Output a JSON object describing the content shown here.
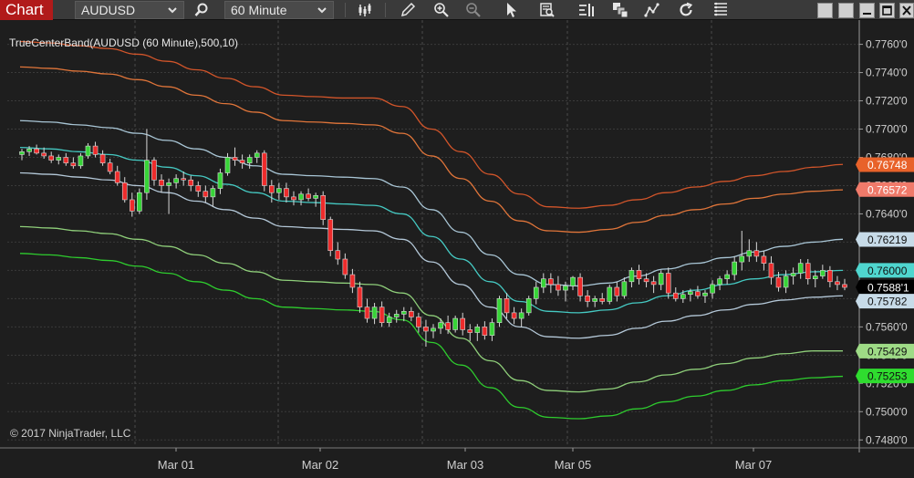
{
  "toolbar": {
    "chart_tab": "Chart",
    "instrument": "AUDUSD",
    "timeframe": "60 Minute"
  },
  "chart": {
    "indicator_label": "TrueCenterBand(AUDUSD (60 Minute),500,10)",
    "copyright": "© 2017 NinjaTrader, LLC"
  },
  "chart_data": {
    "type": "candlestick",
    "symbol": "AUDUSD",
    "interval": "60 Minute",
    "y_axis": {
      "ylim": [
        0.7475,
        0.7772
      ],
      "ticks": [
        "0.7760'0",
        "0.7740'0",
        "0.7720'0",
        "0.7700'0",
        "0.7680'0",
        "0.7660'0",
        "0.7640'0",
        "0.7620'0",
        "0.7600'0",
        "0.7580'0",
        "0.7560'0",
        "0.7540'0",
        "0.7520'0",
        "0.7500'0",
        "0.7480'0"
      ]
    },
    "x_axis": {
      "labels": [
        "Mar 01",
        "Mar 02",
        "Mar 03",
        "Mar 05",
        "Mar 07"
      ]
    },
    "grid": true,
    "band_series": [
      {
        "color": "#d2552a",
        "values": [
          0.7762,
          0.7761,
          0.7759,
          0.7757,
          0.7753,
          0.7748,
          0.7742,
          0.7736,
          0.773,
          0.7724,
          0.7723,
          0.7722,
          0.7722,
          0.7716,
          0.77,
          0.7684,
          0.7668,
          0.7654,
          0.7645,
          0.7644,
          0.7646,
          0.765,
          0.7655,
          0.7659,
          0.7663,
          0.7667,
          0.767,
          0.7673,
          0.7675
        ]
      },
      {
        "color": "#e0753a",
        "values": [
          0.7744,
          0.7743,
          0.7741,
          0.7739,
          0.7735,
          0.773,
          0.7724,
          0.7718,
          0.7712,
          0.7706,
          0.7705,
          0.7704,
          0.7703,
          0.7697,
          0.7681,
          0.7665,
          0.7649,
          0.7635,
          0.7628,
          0.7627,
          0.7629,
          0.7634,
          0.7639,
          0.7643,
          0.7647,
          0.7651,
          0.7654,
          0.7656,
          0.7657
        ]
      },
      {
        "color": "#a9c6d6",
        "values": [
          0.7706,
          0.7705,
          0.7703,
          0.7701,
          0.7697,
          0.7692,
          0.7686,
          0.768,
          0.7674,
          0.7668,
          0.7667,
          0.7666,
          0.7665,
          0.7659,
          0.7643,
          0.7627,
          0.7611,
          0.7597,
          0.759,
          0.7589,
          0.7591,
          0.7596,
          0.7601,
          0.7605,
          0.7609,
          0.7613,
          0.7617,
          0.762,
          0.7622
        ]
      },
      {
        "color": "#45c9c2",
        "values": [
          0.7687,
          0.7686,
          0.7684,
          0.7682,
          0.7678,
          0.7673,
          0.7667,
          0.7661,
          0.7655,
          0.7649,
          0.7648,
          0.7647,
          0.7646,
          0.764,
          0.7624,
          0.7608,
          0.7592,
          0.7578,
          0.7571,
          0.757,
          0.7572,
          0.7577,
          0.7582,
          0.7586,
          0.759,
          0.7594,
          0.7597,
          0.7599,
          0.76
        ]
      },
      {
        "color": "#b4c8d8",
        "values": [
          0.7669,
          0.7668,
          0.7666,
          0.7664,
          0.766,
          0.7655,
          0.7649,
          0.7643,
          0.7637,
          0.7631,
          0.763,
          0.7629,
          0.7628,
          0.7622,
          0.7606,
          0.759,
          0.7574,
          0.756,
          0.7553,
          0.7552,
          0.7554,
          0.7559,
          0.7564,
          0.7568,
          0.7572,
          0.7576,
          0.7579,
          0.7581,
          0.7582
        ]
      },
      {
        "color": "#8fcf7a",
        "values": [
          0.7631,
          0.763,
          0.7628,
          0.7626,
          0.7622,
          0.7617,
          0.7611,
          0.7605,
          0.7599,
          0.7593,
          0.7592,
          0.7591,
          0.759,
          0.7584,
          0.7568,
          0.7552,
          0.7536,
          0.7522,
          0.7515,
          0.7514,
          0.7516,
          0.7521,
          0.7526,
          0.753,
          0.7534,
          0.7538,
          0.7541,
          0.7543,
          0.7543
        ]
      },
      {
        "color": "#2ecc2e",
        "values": [
          0.7612,
          0.7611,
          0.7609,
          0.7607,
          0.7603,
          0.7598,
          0.7592,
          0.7586,
          0.758,
          0.7574,
          0.7573,
          0.7572,
          0.7571,
          0.7565,
          0.7549,
          0.7533,
          0.7517,
          0.7503,
          0.7496,
          0.7495,
          0.7497,
          0.7502,
          0.7507,
          0.7511,
          0.7515,
          0.7519,
          0.7522,
          0.7524,
          0.7525
        ]
      }
    ],
    "price_markers": [
      {
        "label": "0.76748",
        "bg": "#e8622a",
        "fg": "#ffffff"
      },
      {
        "label": "0.76572",
        "bg": "#f07a6a",
        "fg": "#ffffff"
      },
      {
        "label": "0.76219",
        "bg": "#c7dbe8",
        "fg": "#111111"
      },
      {
        "label": "0.76000",
        "bg": "#4fd6cf",
        "fg": "#111111"
      },
      {
        "label": "0.7588'1",
        "bg": "#000000",
        "fg": "#ffffff"
      },
      {
        "label": "0.75782",
        "bg": "#c7dbe8",
        "fg": "#111111"
      },
      {
        "label": "0.75429",
        "bg": "#9edb86",
        "fg": "#111111"
      },
      {
        "label": "0.75253",
        "bg": "#2fdc2f",
        "fg": "#111111"
      }
    ],
    "candles": [
      [
        0.7682,
        0.7686,
        0.7678,
        0.7684
      ],
      [
        0.7684,
        0.7688,
        0.7681,
        0.7686
      ],
      [
        0.7686,
        0.7689,
        0.7682,
        0.7683
      ],
      [
        0.7683,
        0.7687,
        0.7679,
        0.7681
      ],
      [
        0.7681,
        0.7684,
        0.7676,
        0.7678
      ],
      [
        0.7678,
        0.7682,
        0.7675,
        0.768
      ],
      [
        0.768,
        0.7683,
        0.7674,
        0.7676
      ],
      [
        0.7676,
        0.768,
        0.7672,
        0.7674
      ],
      [
        0.7674,
        0.7683,
        0.7672,
        0.7681
      ],
      [
        0.7681,
        0.769,
        0.7679,
        0.7688
      ],
      [
        0.7688,
        0.7691,
        0.768,
        0.7682
      ],
      [
        0.7682,
        0.7685,
        0.7674,
        0.7676
      ],
      [
        0.7676,
        0.7679,
        0.7668,
        0.767
      ],
      [
        0.767,
        0.7674,
        0.766,
        0.7662
      ],
      [
        0.7662,
        0.7666,
        0.7648,
        0.765
      ],
      [
        0.765,
        0.7655,
        0.7638,
        0.7642
      ],
      [
        0.7642,
        0.7658,
        0.764,
        0.7655
      ],
      [
        0.7655,
        0.77,
        0.765,
        0.7678
      ],
      [
        0.7678,
        0.768,
        0.766,
        0.7664
      ],
      [
        0.7664,
        0.7668,
        0.7655,
        0.766
      ],
      [
        0.766,
        0.7665,
        0.764,
        0.7662
      ],
      [
        0.7662,
        0.7668,
        0.7658,
        0.7665
      ],
      [
        0.7665,
        0.767,
        0.766,
        0.7664
      ],
      [
        0.7664,
        0.7667,
        0.7656,
        0.766
      ],
      [
        0.766,
        0.7663,
        0.7652,
        0.7656
      ],
      [
        0.7656,
        0.766,
        0.7648,
        0.7652
      ],
      [
        0.7652,
        0.766,
        0.7645,
        0.7658
      ],
      [
        0.7658,
        0.7672,
        0.7654,
        0.7669
      ],
      [
        0.7669,
        0.7683,
        0.7667,
        0.768
      ],
      [
        0.768,
        0.7687,
        0.7674,
        0.7678
      ],
      [
        0.7678,
        0.7682,
        0.7672,
        0.7676
      ],
      [
        0.7676,
        0.7682,
        0.7672,
        0.768
      ],
      [
        0.768,
        0.7685,
        0.7676,
        0.7683
      ],
      [
        0.7683,
        0.7685,
        0.7656,
        0.766
      ],
      [
        0.766,
        0.7664,
        0.7648,
        0.7655
      ],
      [
        0.7655,
        0.7662,
        0.765,
        0.7658
      ],
      [
        0.7658,
        0.7662,
        0.7648,
        0.7652
      ],
      [
        0.7652,
        0.7656,
        0.7646,
        0.765
      ],
      [
        0.765,
        0.7656,
        0.7646,
        0.7654
      ],
      [
        0.7654,
        0.7658,
        0.7649,
        0.7651
      ],
      [
        0.7651,
        0.7655,
        0.7645,
        0.7653
      ],
      [
        0.7653,
        0.7656,
        0.7632,
        0.7636
      ],
      [
        0.7636,
        0.7638,
        0.761,
        0.7614
      ],
      [
        0.7614,
        0.762,
        0.7604,
        0.7608
      ],
      [
        0.7608,
        0.7612,
        0.7594,
        0.7597
      ],
      [
        0.7597,
        0.7601,
        0.7584,
        0.7588
      ],
      [
        0.7588,
        0.7592,
        0.757,
        0.7574
      ],
      [
        0.7574,
        0.758,
        0.7563,
        0.7566
      ],
      [
        0.7566,
        0.7577,
        0.7562,
        0.7574
      ],
      [
        0.7574,
        0.7578,
        0.756,
        0.7563
      ],
      [
        0.7563,
        0.757,
        0.756,
        0.7567
      ],
      [
        0.7567,
        0.7572,
        0.7563,
        0.7569
      ],
      [
        0.7569,
        0.7574,
        0.7564,
        0.7571
      ],
      [
        0.7571,
        0.7574,
        0.7564,
        0.7567
      ],
      [
        0.7567,
        0.757,
        0.7556,
        0.756
      ],
      [
        0.756,
        0.7565,
        0.7546,
        0.7557
      ],
      [
        0.7557,
        0.7562,
        0.7552,
        0.7559
      ],
      [
        0.7559,
        0.7566,
        0.7555,
        0.7563
      ],
      [
        0.7563,
        0.7568,
        0.7555,
        0.7558
      ],
      [
        0.7558,
        0.7568,
        0.7556,
        0.7566
      ],
      [
        0.7566,
        0.757,
        0.7554,
        0.7558
      ],
      [
        0.7558,
        0.7562,
        0.755,
        0.7556
      ],
      [
        0.7556,
        0.7562,
        0.755,
        0.756
      ],
      [
        0.756,
        0.7564,
        0.7551,
        0.7554
      ],
      [
        0.7554,
        0.7566,
        0.755,
        0.7563
      ],
      [
        0.7563,
        0.7582,
        0.756,
        0.758
      ],
      [
        0.758,
        0.7584,
        0.7566,
        0.757
      ],
      [
        0.757,
        0.7574,
        0.7562,
        0.7566
      ],
      [
        0.7566,
        0.7573,
        0.756,
        0.757
      ],
      [
        0.757,
        0.7582,
        0.7568,
        0.758
      ],
      [
        0.758,
        0.7592,
        0.7576,
        0.7588
      ],
      [
        0.7588,
        0.7598,
        0.7584,
        0.7594
      ],
      [
        0.7594,
        0.7598,
        0.7584,
        0.759
      ],
      [
        0.759,
        0.7596,
        0.7582,
        0.7586
      ],
      [
        0.7586,
        0.7592,
        0.7578,
        0.7589
      ],
      [
        0.7589,
        0.7596,
        0.7586,
        0.7595
      ],
      [
        0.7595,
        0.7598,
        0.7578,
        0.7582
      ],
      [
        0.7582,
        0.7586,
        0.7574,
        0.7578
      ],
      [
        0.7578,
        0.7582,
        0.7574,
        0.758
      ],
      [
        0.758,
        0.7584,
        0.7576,
        0.7578
      ],
      [
        0.7578,
        0.759,
        0.7576,
        0.7588
      ],
      [
        0.7588,
        0.7592,
        0.7578,
        0.7582
      ],
      [
        0.7582,
        0.7595,
        0.758,
        0.7592
      ],
      [
        0.7592,
        0.7602,
        0.7588,
        0.76
      ],
      [
        0.76,
        0.7604,
        0.759,
        0.7594
      ],
      [
        0.7594,
        0.7598,
        0.7588,
        0.7592
      ],
      [
        0.7592,
        0.7596,
        0.7584,
        0.759
      ],
      [
        0.759,
        0.76,
        0.7586,
        0.7598
      ],
      [
        0.7598,
        0.7602,
        0.758,
        0.7584
      ],
      [
        0.7584,
        0.7588,
        0.7578,
        0.758
      ],
      [
        0.758,
        0.7586,
        0.7577,
        0.7583
      ],
      [
        0.7583,
        0.7587,
        0.7578,
        0.7585
      ],
      [
        0.7585,
        0.7589,
        0.758,
        0.7582
      ],
      [
        0.7582,
        0.7586,
        0.7577,
        0.7584
      ],
      [
        0.7584,
        0.7593,
        0.758,
        0.759
      ],
      [
        0.759,
        0.7596,
        0.7586,
        0.7594
      ],
      [
        0.7594,
        0.76,
        0.759,
        0.7597
      ],
      [
        0.7597,
        0.761,
        0.7593,
        0.7606
      ],
      [
        0.7606,
        0.7628,
        0.76,
        0.761
      ],
      [
        0.761,
        0.7622,
        0.7606,
        0.7614
      ],
      [
        0.7614,
        0.762,
        0.7606,
        0.761
      ],
      [
        0.761,
        0.7614,
        0.76,
        0.7605
      ],
      [
        0.7605,
        0.761,
        0.759,
        0.7595
      ],
      [
        0.7595,
        0.7599,
        0.7585,
        0.7588
      ],
      [
        0.7588,
        0.76,
        0.7584,
        0.7596
      ],
      [
        0.7596,
        0.7602,
        0.759,
        0.7598
      ],
      [
        0.7598,
        0.7608,
        0.7594,
        0.7605
      ],
      [
        0.7605,
        0.7608,
        0.759,
        0.7594
      ],
      [
        0.7594,
        0.76,
        0.7588,
        0.7596
      ],
      [
        0.7596,
        0.7604,
        0.7594,
        0.76
      ],
      [
        0.76,
        0.7603,
        0.7588,
        0.7592
      ],
      [
        0.7592,
        0.7596,
        0.7586,
        0.759
      ],
      [
        0.759,
        0.7594,
        0.7586,
        0.7588
      ]
    ]
  }
}
